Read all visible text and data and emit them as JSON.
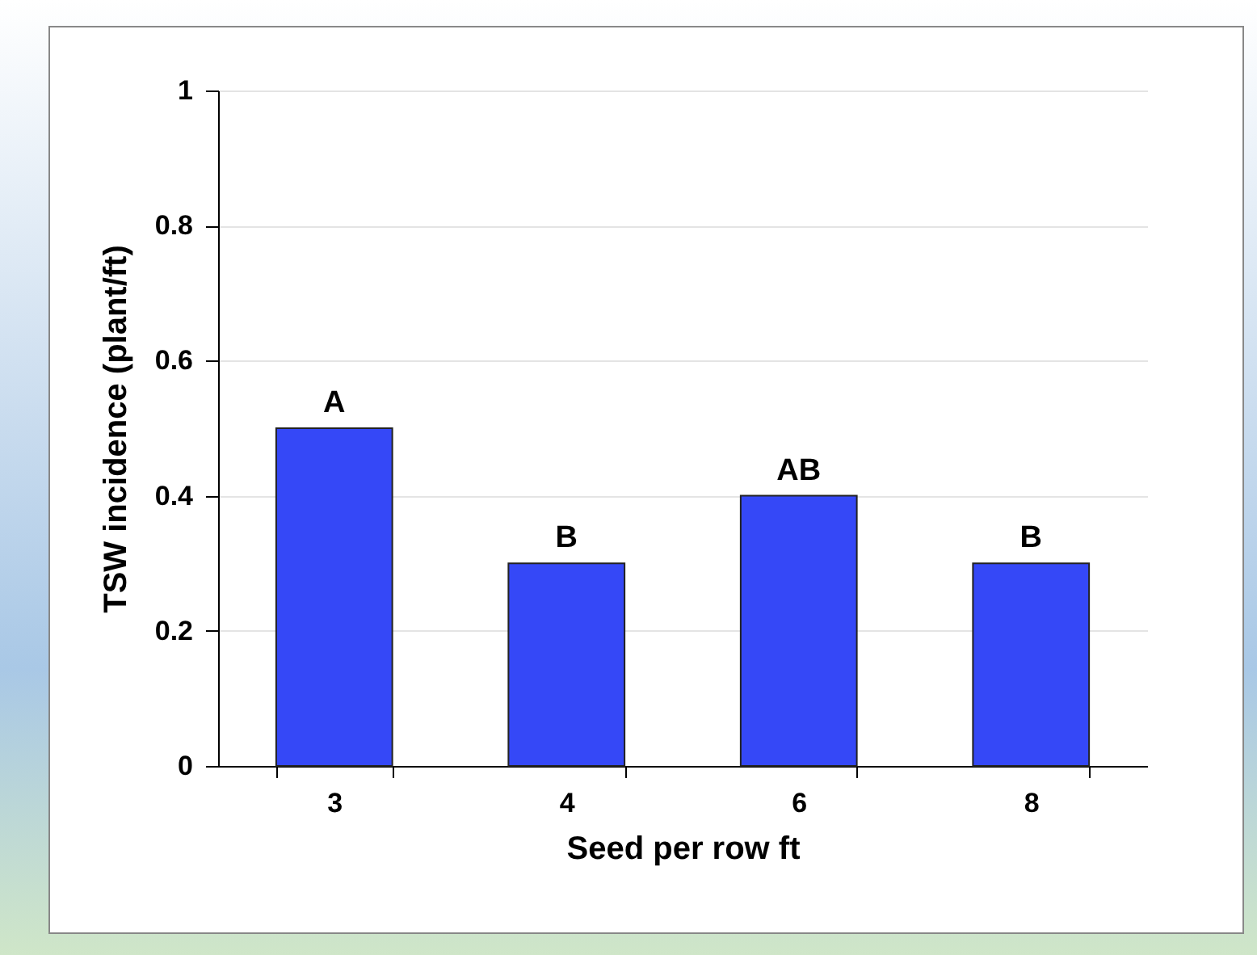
{
  "chart_data": {
    "type": "bar",
    "xlabel": "Seed per row ft",
    "ylabel": "TSW incidence (plant/ft)",
    "categories": [
      "3",
      "4",
      "6",
      "8"
    ],
    "values": [
      0.5,
      0.3,
      0.4,
      0.3
    ],
    "color": "#3548f7",
    "ylim": [
      0,
      1
    ],
    "yticks": [
      0,
      0.2,
      0.4,
      0.6,
      0.8,
      1
    ],
    "grid": "y",
    "annotations": [
      {
        "text": "A",
        "x": "3",
        "y": 0.5
      },
      {
        "text": "B",
        "x": "4",
        "y": 0.3
      },
      {
        "text": "AB",
        "x": "6",
        "y": 0.4
      },
      {
        "text": "B",
        "x": "8",
        "y": 0.3
      }
    ]
  }
}
